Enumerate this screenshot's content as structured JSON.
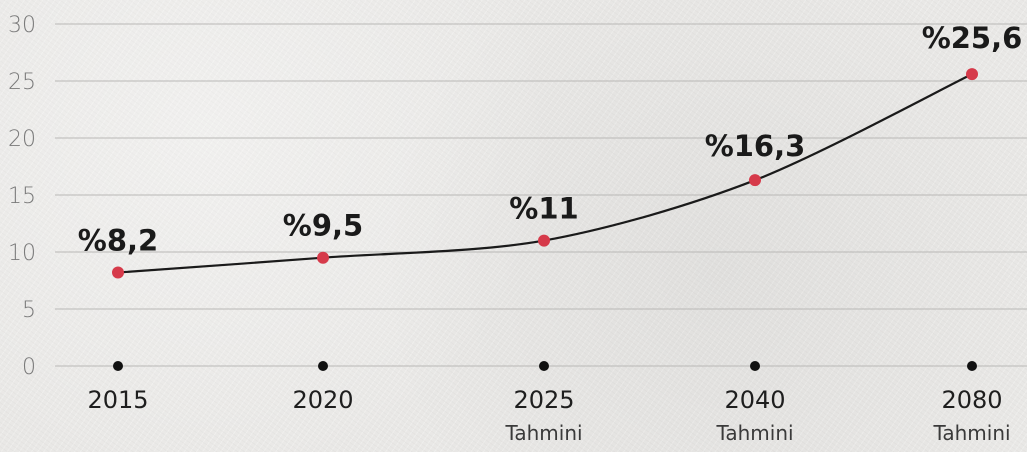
{
  "chart_data": {
    "type": "line",
    "x": [
      "2015",
      "2020",
      "2025",
      "2040",
      "2080"
    ],
    "x_notes": [
      "",
      "",
      "Tahmini",
      "Tahmini",
      "Tahmini"
    ],
    "series": [
      {
        "values": [
          8.2,
          9.5,
          11,
          16.3,
          25.6
        ],
        "labels": [
          "%8,2",
          "%9,5",
          "%11",
          "%16,3",
          "%25,6"
        ]
      }
    ],
    "yticks": [
      "0",
      "5",
      "10",
      "15",
      "20",
      "25",
      "30"
    ],
    "ylim": [
      0,
      30
    ],
    "grid": true,
    "colors": {
      "line": "#1a1a1a",
      "point": "#d63a4a",
      "axis_dot": "#111111",
      "grid": "#b9b8b6"
    }
  }
}
